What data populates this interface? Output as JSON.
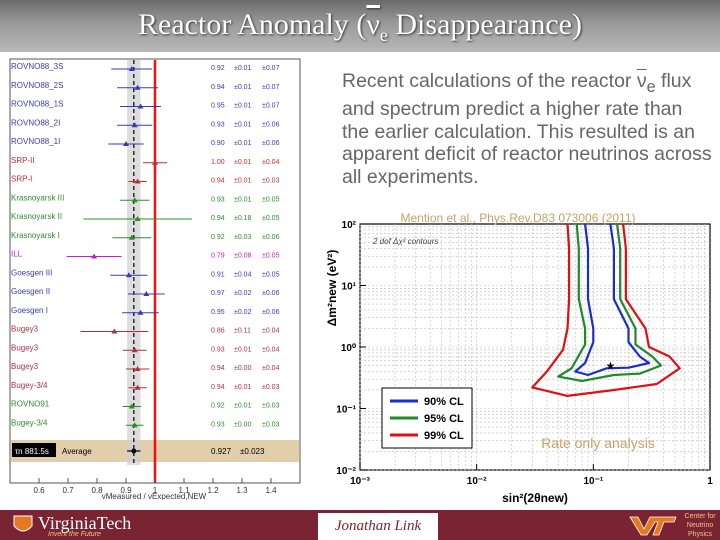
{
  "slide": {
    "title_main": "Reactor Anomaly (",
    "title_nu": "ν",
    "title_sub": "e",
    "title_end": " Disappearance)",
    "bullet_pre": "Recent calculations of the reactor ",
    "bullet_nu": "ν",
    "bullet_sub": "e",
    "bullet_post": " flux and spectrum predict a higher rate than the earlier calculation.  This resulted is an apparent deficit of reactor neutrinos across all experiments.",
    "citation": "Mention et al., Phys.Rev.D83 073006 (2011)",
    "rate_only": "Rate only analysis",
    "author": "Jonathan Link",
    "vt_name": "VirginiaTech",
    "vt_tagline": "Invent the Future",
    "center_name": "Center for Neutrino Physics"
  },
  "chart_data": [
    {
      "type": "scatter",
      "subtype": "ratio-forest-plot",
      "xlabel": "νMeasured / νExpected,NEW",
      "xlim": [
        0.5,
        1.5
      ],
      "xticks": [
        "0.6",
        "0.7",
        "0.8",
        "0.9",
        "1",
        "1.1",
        "1.2",
        "1.3",
        "1.4"
      ],
      "reference_line": 1.0,
      "average_band": 0.927,
      "average_label": "Average",
      "average_value": "0.927",
      "average_error": "±0.023",
      "tau_label": "τn 881.5s",
      "colors": {
        "blue": "#3a3ab8",
        "red": "#c42c2c",
        "green": "#2e8b2e",
        "magenta": "#c020c0",
        "crimson": "#b03040",
        "refline": "#ee1111",
        "average_box": "#e2ceaa"
      },
      "experiments": [
        {
          "name": "ROVNO88_3S",
          "ratio": 0.92,
          "stat": "±0.01",
          "err": "±0.07",
          "color": "blue"
        },
        {
          "name": "ROVNO88_2S",
          "ratio": 0.94,
          "stat": "±0.01",
          "err": "±0.07",
          "color": "blue"
        },
        {
          "name": "ROVNO88_1S",
          "ratio": 0.95,
          "stat": "±0.01",
          "err": "±0.07",
          "color": "blue"
        },
        {
          "name": "ROVNO88_2I",
          "ratio": 0.93,
          "stat": "±0.01",
          "err": "±0.06",
          "color": "blue"
        },
        {
          "name": "ROVNO88_1I",
          "ratio": 0.9,
          "stat": "±0.01",
          "err": "±0.06",
          "color": "blue"
        },
        {
          "name": "SRP-II",
          "ratio": 1.0,
          "stat": "±0.01",
          "err": "±0.04",
          "color": "red"
        },
        {
          "name": "SRP-I",
          "ratio": 0.94,
          "stat": "±0.01",
          "err": "±0.03",
          "color": "red"
        },
        {
          "name": "Krasnoyarsk III",
          "ratio": 0.93,
          "stat": "±0.01",
          "err": "±0.05",
          "color": "green"
        },
        {
          "name": "Krasnoyarsk II",
          "ratio": 0.94,
          "stat": "±0.18",
          "err": "±0.05",
          "color": "green"
        },
        {
          "name": "Krasnoyarsk I",
          "ratio": 0.92,
          "stat": "±0.03",
          "err": "±0.06",
          "color": "green"
        },
        {
          "name": "ILL",
          "ratio": 0.79,
          "stat": "±0.08",
          "err": "±0.05",
          "color": "magenta"
        },
        {
          "name": "Goesgen III",
          "ratio": 0.91,
          "stat": "±0.04",
          "err": "±0.05",
          "color": "blue"
        },
        {
          "name": "Goesgen II",
          "ratio": 0.97,
          "stat": "±0.02",
          "err": "±0.06",
          "color": "blue"
        },
        {
          "name": "Goesgen I",
          "ratio": 0.95,
          "stat": "±0.02",
          "err": "±0.06",
          "color": "blue"
        },
        {
          "name": "Bugey3",
          "ratio": 0.86,
          "stat": "±0.11",
          "err": "±0.04",
          "color": "crimson"
        },
        {
          "name": "Bugey3",
          "ratio": 0.93,
          "stat": "±0.01",
          "err": "±0.04",
          "color": "crimson"
        },
        {
          "name": "Bugey3",
          "ratio": 0.94,
          "stat": "±0.00",
          "err": "±0.04",
          "color": "crimson"
        },
        {
          "name": "Bugey-3/4",
          "ratio": 0.94,
          "stat": "±0.01",
          "err": "±0.03",
          "color": "crimson"
        },
        {
          "name": "ROVNO91",
          "ratio": 0.92,
          "stat": "±0.01",
          "err": "±0.03",
          "color": "green"
        },
        {
          "name": "Bugey-3/4",
          "ratio": 0.93,
          "stat": "±0.00",
          "err": "±0.03",
          "color": "green"
        }
      ]
    },
    {
      "type": "line",
      "subtype": "exclusion-contours",
      "xlabel": "sin²(2θnew)",
      "ylabel": "Δm²new (eV²)",
      "xscale": "log",
      "yscale": "log",
      "xlim": [
        0.001,
        1
      ],
      "ylim": [
        0.01,
        100
      ],
      "xticks": [
        "10⁻³",
        "10⁻²",
        "10⁻¹",
        "1"
      ],
      "yticks": [
        "10²",
        "10¹",
        "10⁰",
        "10⁻¹",
        "10⁻²"
      ],
      "inner_label": "2 dof Δχ² contours",
      "legend_position": "bottom-left",
      "best_fit": {
        "x": 0.14,
        "y": 0.5
      },
      "series": [
        {
          "name": "90% CL",
          "color": "#1a2ed0",
          "left": [
            [
              0.085,
              100
            ],
            [
              0.09,
              40
            ],
            [
              0.09,
              6
            ],
            [
              0.1,
              2
            ],
            [
              0.1,
              1.2
            ],
            [
              0.085,
              0.55
            ],
            [
              0.07,
              0.4
            ],
            [
              0.09,
              0.35
            ],
            [
              0.13,
              0.45
            ]
          ],
          "right": [
            [
              0.14,
              100
            ],
            [
              0.15,
              40
            ],
            [
              0.15,
              6
            ],
            [
              0.2,
              2
            ],
            [
              0.2,
              1.2
            ],
            [
              0.25,
              0.7
            ],
            [
              0.3,
              0.55
            ],
            [
              0.2,
              0.46
            ],
            [
              0.13,
              0.45
            ]
          ]
        },
        {
          "name": "95% CL",
          "color": "#1e8a2a",
          "left": [
            [
              0.072,
              100
            ],
            [
              0.075,
              40
            ],
            [
              0.075,
              6
            ],
            [
              0.085,
              2
            ],
            [
              0.085,
              1.1
            ],
            [
              0.065,
              0.45
            ],
            [
              0.05,
              0.33
            ],
            [
              0.08,
              0.28
            ],
            [
              0.15,
              0.35
            ]
          ],
          "right": [
            [
              0.16,
              100
            ],
            [
              0.17,
              40
            ],
            [
              0.17,
              6
            ],
            [
              0.23,
              2
            ],
            [
              0.23,
              1.1
            ],
            [
              0.32,
              0.7
            ],
            [
              0.38,
              0.5
            ],
            [
              0.25,
              0.37
            ],
            [
              0.15,
              0.35
            ]
          ]
        },
        {
          "name": "99% CL",
          "color": "#e01010",
          "left": [
            [
              0.06,
              100
            ],
            [
              0.062,
              40
            ],
            [
              0.062,
              6
            ],
            [
              0.06,
              2
            ],
            [
              0.055,
              0.9
            ],
            [
              0.04,
              0.4
            ],
            [
              0.03,
              0.22
            ],
            [
              0.06,
              0.16
            ],
            [
              0.15,
              0.2
            ]
          ],
          "right": [
            [
              0.18,
              100
            ],
            [
              0.19,
              40
            ],
            [
              0.19,
              6
            ],
            [
              0.28,
              2
            ],
            [
              0.3,
              1
            ],
            [
              0.45,
              0.7
            ],
            [
              0.55,
              0.45
            ],
            [
              0.35,
              0.25
            ],
            [
              0.15,
              0.2
            ]
          ]
        }
      ]
    }
  ]
}
